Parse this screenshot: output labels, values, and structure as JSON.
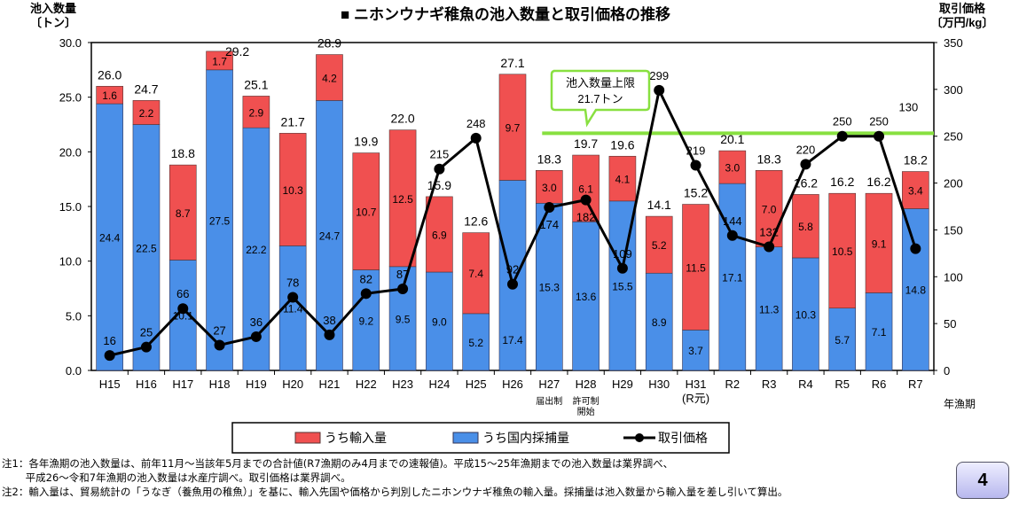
{
  "chart_data": {
    "type": "bar",
    "title": "■ ニホンウナギ稚魚の池入数量と取引価格の推移",
    "ylabel": "池入数量\n〔トン〕",
    "y2label": "取引価格\n〔万円/kg〕",
    "xlabel": "年漁期",
    "ylim": [
      0,
      30
    ],
    "y2lim": [
      0,
      350
    ],
    "yticks": [
      "0.0",
      "5.0",
      "10.0",
      "15.0",
      "20.0",
      "25.0",
      "30.0"
    ],
    "y2ticks": [
      "0",
      "50",
      "100",
      "150",
      "200",
      "250",
      "300",
      "350"
    ],
    "categories": [
      "H15",
      "H16",
      "H17",
      "H18",
      "H19",
      "H20",
      "H21",
      "H22",
      "H23",
      "H24",
      "H25",
      "H26",
      "H27",
      "H28",
      "H29",
      "H30",
      "H31",
      "R2",
      "R3",
      "R4",
      "R5",
      "R6",
      "R7"
    ],
    "sublabels": {
      "12": "届出制",
      "13": "許可制\n開始",
      "16": "(R元)"
    },
    "series": [
      {
        "name": "うち国内採捕量",
        "type": "stacked-bar",
        "color": "#4a8fe8",
        "values": [
          24.4,
          22.5,
          10.1,
          27.5,
          22.2,
          11.4,
          24.7,
          9.2,
          9.5,
          9.0,
          5.2,
          17.4,
          15.3,
          13.6,
          15.5,
          8.9,
          3.7,
          17.1,
          11.3,
          10.3,
          5.7,
          7.1,
          14.8
        ]
      },
      {
        "name": "うち輸入量",
        "type": "stacked-bar",
        "color": "#f05050",
        "values": [
          1.6,
          2.2,
          8.7,
          1.7,
          2.9,
          10.3,
          4.2,
          10.7,
          12.5,
          6.9,
          7.4,
          9.7,
          3.0,
          6.1,
          4.1,
          5.2,
          11.5,
          3.0,
          7.0,
          5.8,
          10.5,
          9.1,
          3.4
        ]
      },
      {
        "name": "取引価格",
        "type": "line",
        "axis": "right",
        "color": "#000000",
        "values": [
          16,
          25,
          66,
          27,
          36,
          78,
          38,
          82,
          87,
          215,
          248,
          92,
          174,
          182,
          109,
          299,
          219,
          144,
          132,
          220,
          250,
          250,
          130
        ]
      }
    ],
    "totals": [
      26.0,
      24.7,
      18.8,
      29.2,
      25.1,
      21.7,
      28.9,
      19.9,
      22.0,
      15.9,
      12.6,
      27.1,
      18.3,
      19.7,
      19.6,
      14.1,
      15.2,
      20.1,
      18.3,
      16.2,
      16.2,
      16.2,
      18.2
    ],
    "limit": {
      "label": "池入数量上限",
      "value_label": "21.7トン",
      "value": 21.7,
      "color": "#88e040",
      "from_category": "H27"
    },
    "legend": [
      "うち輸入量",
      "うち国内採捕量",
      "取引価格"
    ],
    "legend_position": "bottom"
  },
  "notes": [
    "注1：各年漁期の池入数量は、前年11月～当該年5月までの合計値(R7漁期のみ4月までの速報値)。平成15～25年漁期までの池入数量は業界調べ、",
    "　　 平成26～令和7年漁期の池入数量は水産庁調べ。取引価格は業界調べ。",
    "注2：輸入量は、貿易統計の「うなぎ（養魚用の稚魚）」を基に、輸入先国や価格から判別したニホンウナギ稚魚の輸入量。採捕量は池入数量から輸入量を差し引いて算出。"
  ],
  "page_number": "4"
}
